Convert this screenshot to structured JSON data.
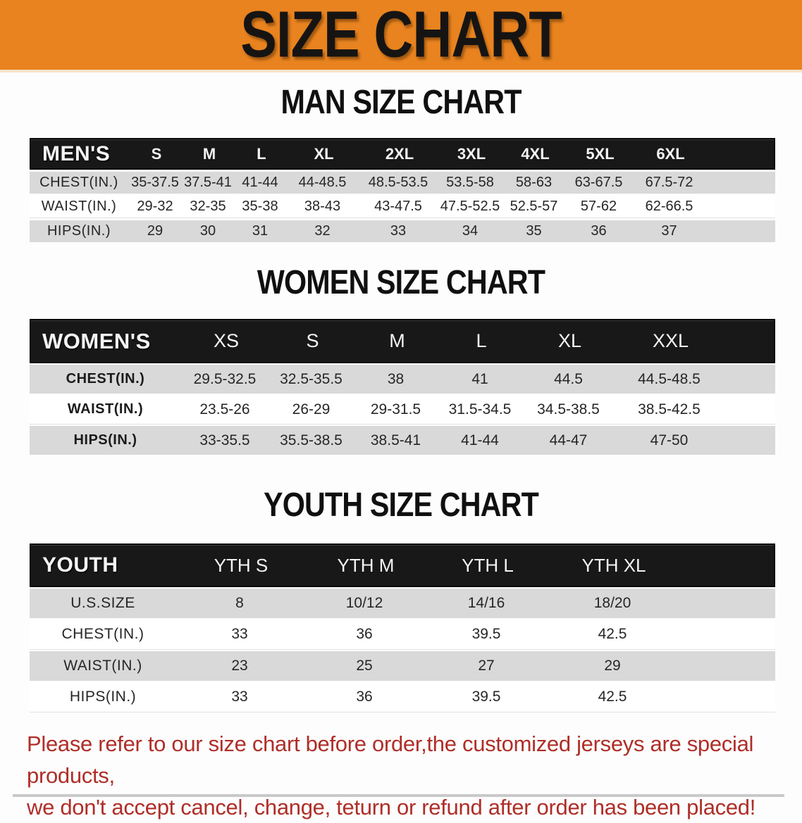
{
  "banner": {
    "title": "SIZE CHART",
    "bg_color": "#E8831F",
    "text_color": "#161413"
  },
  "sections": [
    {
      "heading": "MAN SIZE CHART",
      "header_label": "MEN'S",
      "columns": [
        "S",
        "M",
        "L",
        "XL",
        "2XL",
        "3XL",
        "4XL",
        "5XL",
        "6XL"
      ],
      "rows": [
        {
          "label": "CHEST(IN.)",
          "values": [
            "35-37.5",
            "37.5-41",
            "41-44",
            "44-48.5",
            "48.5-53.5",
            "53.5-58",
            "58-63",
            "63-67.5",
            "67.5-72"
          ]
        },
        {
          "label": "WAIST(IN.)",
          "values": [
            "29-32",
            "32-35",
            "35-38",
            "38-43",
            "43-47.5",
            "47.5-52.5",
            "52.5-57",
            "57-62",
            "62-66.5"
          ]
        },
        {
          "label": "HIPS(IN.)",
          "values": [
            "29",
            "30",
            "31",
            "32",
            "33",
            "34",
            "35",
            "36",
            "37"
          ]
        }
      ]
    },
    {
      "heading": "WOMEN SIZE CHART",
      "header_label": "WOMEN'S",
      "columns": [
        "XS",
        "S",
        "M",
        "L",
        "XL",
        "XXL"
      ],
      "rows": [
        {
          "label": "CHEST(IN.)",
          "values": [
            "29.5-32.5",
            "32.5-35.5",
            "38",
            "41",
            "44.5",
            "44.5-48.5"
          ]
        },
        {
          "label": "WAIST(IN.)",
          "values": [
            "23.5-26",
            "26-29",
            "29-31.5",
            "31.5-34.5",
            "34.5-38.5",
            "38.5-42.5"
          ]
        },
        {
          "label": "HIPS(IN.)",
          "values": [
            "33-35.5",
            "35.5-38.5",
            "38.5-41",
            "41-44",
            "44-47",
            "47-50"
          ]
        }
      ]
    },
    {
      "heading": "YOUTH SIZE CHART",
      "header_label": "YOUTH",
      "columns": [
        "YTH S",
        "YTH M",
        "YTH L",
        "YTH XL"
      ],
      "rows": [
        {
          "label": "U.S.SIZE",
          "values": [
            "8",
            "10/12",
            "14/16",
            "18/20"
          ]
        },
        {
          "label": "CHEST(IN.)",
          "values": [
            "33",
            "36",
            "39.5",
            "42.5"
          ]
        },
        {
          "label": "WAIST(IN.)",
          "values": [
            "23",
            "25",
            "27",
            "29"
          ]
        },
        {
          "label": "HIPS(IN.)",
          "values": [
            "33",
            "36",
            "39.5",
            "42.5"
          ]
        }
      ]
    }
  ],
  "disclaimer": {
    "line1": "Please refer to our size chart before order,the customized jerseys are special products,",
    "line2": "we don't accept cancel, change, teturn or refund after order has been placed!",
    "color": "#AF2E28"
  },
  "colors": {
    "banner_orange": "#E8831F",
    "table_header_black": "#181818",
    "row_gray": "#d9d9d9",
    "disclaimer_red": "#AF2E28"
  }
}
